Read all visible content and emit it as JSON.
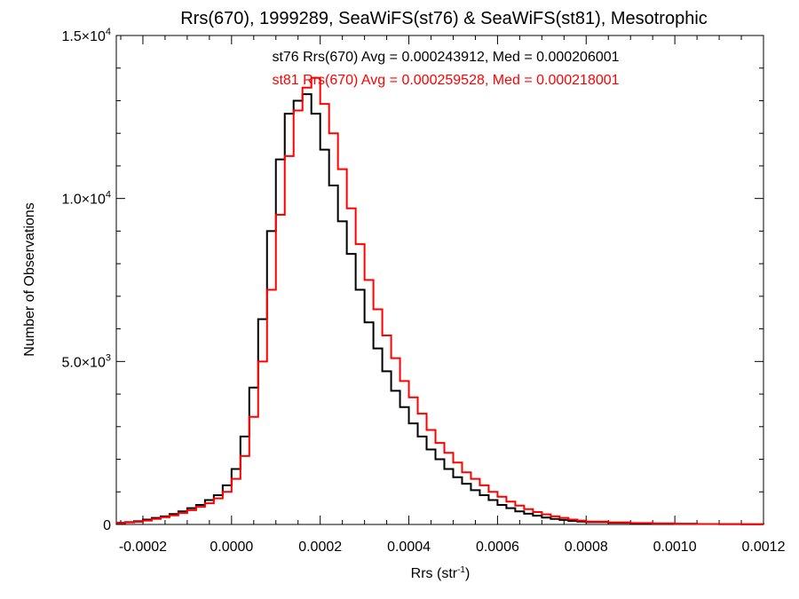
{
  "chart_data": {
    "type": "histogram",
    "title": "Rrs(670), 1999289, SeaWiFS(st76) & SeaWiFS(st81), Mesotrophic",
    "xlabel": "Rrs (str",
    "xlabel_sup": "-1",
    "xlabel_close": ")",
    "ylabel": "Number of Observations",
    "xlim": [
      -0.00026,
      0.0012
    ],
    "ylim": [
      0,
      15000
    ],
    "x_ticks": [
      {
        "value": -0.0002,
        "label": "-0.0002"
      },
      {
        "value": 0.0,
        "label": "0.0000"
      },
      {
        "value": 0.0002,
        "label": "0.0002"
      },
      {
        "value": 0.0004,
        "label": "0.0004"
      },
      {
        "value": 0.0006,
        "label": "0.0006"
      },
      {
        "value": 0.0008,
        "label": "0.0008"
      },
      {
        "value": 0.001,
        "label": "0.0010"
      },
      {
        "value": 0.0012,
        "label": "0.0012"
      }
    ],
    "y_ticks": [
      {
        "value": 0,
        "label": "0",
        "exp": ""
      },
      {
        "value": 5000,
        "label": "5.0×10",
        "exp": "3"
      },
      {
        "value": 10000,
        "label": "1.0×10",
        "exp": "4"
      },
      {
        "value": 15000,
        "label": "1.5×10",
        "exp": "4"
      }
    ],
    "annotations": [
      {
        "text": "st76 Rrs(670) Avg = 0.000243912, Med = 0.000206001",
        "color": "#000000"
      },
      {
        "text": "st81 Rrs(670) Avg = 0.000259528, Med = 0.000218001",
        "color": "#ff0000"
      }
    ],
    "series": [
      {
        "name": "st76",
        "color": "#000000",
        "x": [
          -0.00026,
          -0.00024,
          -0.00022,
          -0.0002,
          -0.00018,
          -0.00016,
          -0.00014,
          -0.00012,
          -0.0001,
          -8e-05,
          -6e-05,
          -4e-05,
          -2e-05,
          0.0,
          2e-05,
          4e-05,
          6e-05,
          8e-05,
          0.0001,
          0.00012,
          0.00014,
          0.00016,
          0.00018,
          0.0002,
          0.00022,
          0.00024,
          0.00026,
          0.00028,
          0.0003,
          0.00032,
          0.00034,
          0.00036,
          0.00038,
          0.0004,
          0.00042,
          0.00044,
          0.00046,
          0.00048,
          0.0005,
          0.00052,
          0.00054,
          0.00056,
          0.00058,
          0.0006,
          0.00062,
          0.00064,
          0.00066,
          0.00068,
          0.0007,
          0.00072,
          0.00074,
          0.00076,
          0.00078,
          0.0008,
          0.00085,
          0.0009,
          0.00095,
          0.001,
          0.00105,
          0.0011,
          0.00115,
          0.0012
        ],
        "y": [
          50,
          70,
          100,
          150,
          200,
          250,
          320,
          400,
          500,
          600,
          750,
          900,
          1200,
          1700,
          2700,
          4200,
          6300,
          9000,
          11200,
          12600,
          13000,
          13200,
          12600,
          11500,
          10400,
          9300,
          8300,
          7200,
          6200,
          5400,
          4700,
          4100,
          3600,
          3100,
          2700,
          2300,
          2000,
          1700,
          1450,
          1250,
          1050,
          900,
          750,
          600,
          500,
          400,
          330,
          270,
          210,
          170,
          140,
          110,
          90,
          70,
          50,
          40,
          30,
          20,
          15,
          10,
          8,
          5
        ]
      },
      {
        "name": "st81",
        "color": "#ff0000",
        "x": [
          -0.00026,
          -0.00024,
          -0.00022,
          -0.0002,
          -0.00018,
          -0.00016,
          -0.00014,
          -0.00012,
          -0.0001,
          -8e-05,
          -6e-05,
          -4e-05,
          -2e-05,
          0.0,
          2e-05,
          4e-05,
          6e-05,
          8e-05,
          0.0001,
          0.00012,
          0.00014,
          0.00016,
          0.00018,
          0.0002,
          0.00022,
          0.00024,
          0.00026,
          0.00028,
          0.0003,
          0.00032,
          0.00034,
          0.00036,
          0.00038,
          0.0004,
          0.00042,
          0.00044,
          0.00046,
          0.00048,
          0.0005,
          0.00052,
          0.00054,
          0.00056,
          0.00058,
          0.0006,
          0.00062,
          0.00064,
          0.00066,
          0.00068,
          0.0007,
          0.00072,
          0.00074,
          0.00076,
          0.00078,
          0.0008,
          0.00085,
          0.0009,
          0.00095,
          0.001,
          0.00105,
          0.0011,
          0.00115,
          0.0012
        ],
        "y": [
          40,
          60,
          80,
          120,
          170,
          220,
          280,
          350,
          440,
          540,
          650,
          800,
          1000,
          1400,
          2100,
          3300,
          5000,
          7200,
          9500,
          11300,
          12700,
          13400,
          13700,
          12900,
          12000,
          10900,
          9700,
          8600,
          7500,
          6600,
          5800,
          5100,
          4400,
          3900,
          3400,
          2900,
          2500,
          2200,
          1900,
          1600,
          1400,
          1200,
          1000,
          850,
          700,
          580,
          470,
          380,
          310,
          250,
          200,
          150,
          120,
          90,
          65,
          45,
          32,
          22,
          15,
          10,
          8,
          5
        ]
      }
    ]
  }
}
